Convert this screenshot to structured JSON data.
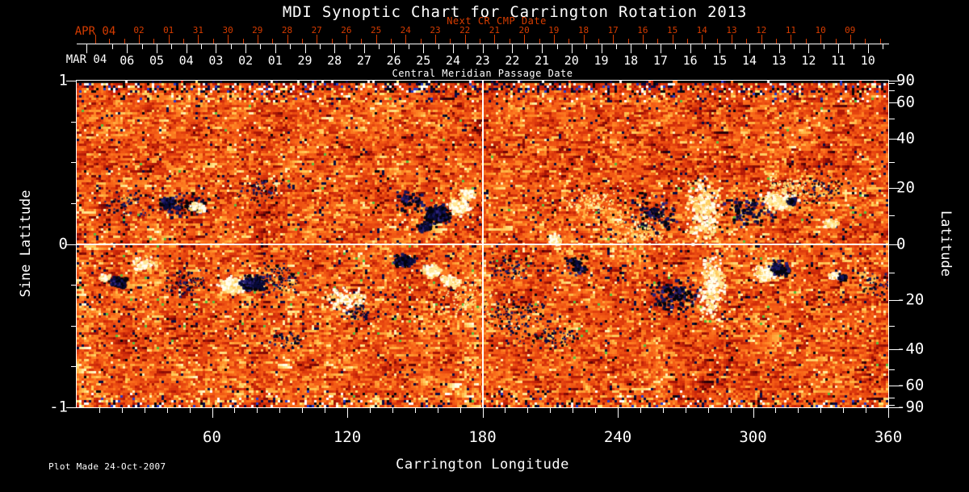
{
  "title": "MDI Synoptic Chart for Carrington Rotation 2013",
  "footer": "Plot Made 24-Oct-2007",
  "top_axis": {
    "red_title": "Next CR CMP Date",
    "red_month_label": "APR 04",
    "red_tick_labels": [
      "02",
      "01",
      "31",
      "30",
      "29",
      "28",
      "27",
      "26",
      "25",
      "24",
      "23",
      "22",
      "21",
      "20",
      "19",
      "18",
      "17",
      "16",
      "15",
      "14",
      "13",
      "12",
      "11",
      "10",
      "09"
    ],
    "white_month_label": "MAR 04",
    "white_tick_labels": [
      "06",
      "05",
      "04",
      "03",
      "02",
      "01",
      "29",
      "28",
      "27",
      "26",
      "25",
      "24",
      "23",
      "22",
      "21",
      "20",
      "19",
      "18",
      "17",
      "16",
      "15",
      "14",
      "13",
      "12",
      "11",
      "10"
    ],
    "axis_title": "Central Meridian Passage Date"
  },
  "left_axis": {
    "title": "Sine Latitude",
    "major_ticks": [
      {
        "value": 1,
        "label": "1"
      },
      {
        "value": 0,
        "label": "0"
      },
      {
        "value": -1,
        "label": "-1"
      }
    ],
    "minor_tick_values": [
      0.75,
      0.5,
      0.25,
      -0.25,
      -0.5,
      -0.75
    ]
  },
  "right_axis": {
    "title": "Latitude",
    "labeled_degrees": [
      90,
      60,
      40,
      20,
      0,
      -20,
      -40,
      -60,
      -90
    ],
    "minor_degrees": [
      80,
      70,
      50,
      30,
      10,
      -10,
      -30,
      -50,
      -70,
      -80
    ]
  },
  "bottom_axis": {
    "title": "Carrington Longitude",
    "labeled_longitudes": [
      60,
      120,
      180,
      240,
      300,
      360
    ],
    "minor_longitude_step": 10
  },
  "colors": {
    "background": "#000000",
    "text": "#ffffff",
    "red_annotation": "#d63c00",
    "frame": "#ffffff",
    "crosshair": "#ffffff",
    "negative_polarity": "#000030",
    "positive_polarity": "#fffff0",
    "field_palette_stops": [
      [
        40,
        0,
        8
      ],
      [
        110,
        5,
        5
      ],
      [
        168,
        20,
        5
      ],
      [
        210,
        45,
        10
      ],
      [
        232,
        72,
        16
      ],
      [
        248,
        100,
        24
      ],
      [
        255,
        140,
        40
      ],
      [
        255,
        195,
        80
      ],
      [
        255,
        235,
        150
      ],
      [
        255,
        255,
        235
      ]
    ]
  },
  "chart_data": {
    "type": "heatmap",
    "title": "MDI Synoptic Chart for Carrington Rotation 2013",
    "description": "SOHO/MDI line-of-sight magnetic field synoptic map for Carrington rotation 2013. Orange/red mottle is weak mixed field; white/yellow patches are positive-polarity active regions; black/dark-blue patches are negative polarity. Noisy speckle bands appear at both poles. A white crosshair marks longitude 180 and sine latitude 0.",
    "x_axis": {
      "label": "Carrington Longitude",
      "range": [
        0,
        360
      ]
    },
    "y_axis": {
      "label": "Sine Latitude",
      "range": [
        -1,
        1
      ]
    },
    "right_axis_label": "Latitude",
    "crosshair": {
      "longitude": 180,
      "sine_latitude": 0
    },
    "cmp_dates": {
      "current_rotation": "2004 Feb 10 - Mar 06 (right to left)",
      "next_rotation": "2004 Mar 09 - Apr 02 (right to left)"
    },
    "active_regions_format": [
      "longitude_deg",
      "latitude_deg",
      "polarity(1=white,-1=black,2=bright flecks,-2=dark flecks)",
      "radius_px",
      "count",
      "x_spread",
      "y_spread"
    ],
    "active_regions": [
      [
        39.4,
        15.0,
        -1,
        8,
        80,
        1,
        0.7
      ],
      [
        46.6,
        14.4,
        -1,
        22,
        90,
        1.2,
        0.6
      ],
      [
        52.7,
        13.6,
        1,
        8,
        45,
        1,
        0.7
      ],
      [
        146.9,
        15.6,
        -1,
        16,
        55,
        1.1,
        0.7
      ],
      [
        159.4,
        10.7,
        -1,
        12,
        240,
        1,
        0.8
      ],
      [
        154.0,
        6.4,
        -1,
        8,
        60,
        1,
        0.7
      ],
      [
        169.1,
        13.6,
        1,
        10,
        170,
        1,
        0.8
      ],
      [
        172.0,
        18.0,
        1,
        8,
        50,
        1,
        0.7
      ],
      [
        211.4,
        1.8,
        1,
        7,
        80,
        1,
        0.8
      ],
      [
        229.3,
        15.0,
        2,
        25,
        90,
        1,
        0.7
      ],
      [
        256.1,
        10.7,
        -1,
        24,
        100,
        1,
        0.8
      ],
      [
        277.6,
        12.1,
        1,
        26,
        280,
        0.6,
        1.3
      ],
      [
        296.6,
        12.1,
        -1,
        22,
        90,
        1,
        0.8
      ],
      [
        311.0,
        15.6,
        1,
        15,
        150,
        1,
        0.7
      ],
      [
        316.7,
        15.6,
        -1,
        5,
        45,
        1,
        0.7
      ],
      [
        334.2,
        7.5,
        1,
        7,
        65,
        1,
        0.7
      ],
      [
        11.8,
        -11.5,
        1,
        5,
        35,
        1,
        0.7
      ],
      [
        17.9,
        -13.0,
        -1,
        8,
        95,
        1,
        0.7
      ],
      [
        29.7,
        -6.7,
        1,
        12,
        55,
        1,
        0.6
      ],
      [
        47.6,
        -13.6,
        -2,
        20,
        70,
        1,
        0.7
      ],
      [
        68.8,
        -14.1,
        1,
        13,
        240,
        1,
        0.7
      ],
      [
        78.1,
        -13.6,
        -1,
        12,
        220,
        1,
        0.7
      ],
      [
        89.6,
        -12.1,
        -2,
        25,
        85,
        1,
        0.7
      ],
      [
        118.2,
        -19.5,
        1,
        22,
        110,
        1,
        0.6
      ],
      [
        125.4,
        -24.7,
        -2,
        15,
        50,
        1,
        0.7
      ],
      [
        144.4,
        -5.5,
        -1,
        11,
        130,
        1,
        0.7
      ],
      [
        156.9,
        -9.2,
        1,
        9,
        95,
        1,
        0.7
      ],
      [
        165.5,
        -12.7,
        1,
        9,
        85,
        1,
        0.7
      ],
      [
        191.6,
        -7.8,
        -2,
        25,
        65,
        1,
        0.7
      ],
      [
        221.0,
        -7.0,
        -1,
        15,
        55,
        1,
        0.7
      ],
      [
        193.4,
        -25.6,
        -2,
        35,
        95,
        1,
        0.6
      ],
      [
        207.8,
        -34.8,
        -2,
        30,
        70,
        1.2,
        0.5
      ],
      [
        264.3,
        -18.0,
        -1,
        22,
        140,
        1,
        0.8
      ],
      [
        281.2,
        -15.0,
        1,
        24,
        230,
        0.5,
        1.6
      ],
      [
        304.5,
        -10.1,
        1,
        10,
        120,
        1,
        0.8
      ],
      [
        311.0,
        -8.4,
        -1,
        10,
        120,
        1,
        0.8
      ],
      [
        336.0,
        -10.7,
        1,
        6,
        45,
        1,
        0.7
      ],
      [
        339.2,
        -11.5,
        -1,
        5,
        32,
        1,
        0.7
      ],
      [
        93.1,
        -35.5,
        -2,
        18,
        45,
        1,
        0.6
      ],
      [
        315.0,
        21.0,
        2,
        30,
        110,
        1,
        0.6
      ],
      [
        250.7,
        5.0,
        2,
        35,
        95,
        1,
        0.7
      ],
      [
        172.0,
        -19.5,
        2,
        30,
        85,
        1,
        0.7
      ],
      [
        82.0,
        20.0,
        -2,
        25,
        55,
        1,
        0.6
      ],
      [
        330.0,
        20.0,
        -2,
        30,
        65,
        1,
        0.6
      ],
      [
        21.5,
        15.0,
        -2,
        25,
        55,
        1,
        0.7
      ],
      [
        354.6,
        -13.6,
        -2,
        20,
        45,
        1,
        0.7
      ]
    ]
  }
}
